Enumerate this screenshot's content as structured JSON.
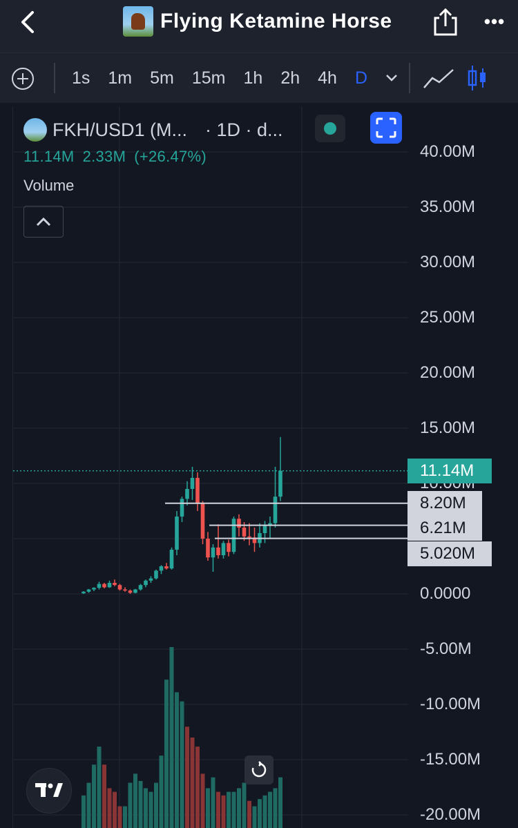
{
  "header": {
    "title": "Flying Ketamine Horse",
    "back_icon": "chevron-left-icon",
    "share_icon": "share-icon",
    "more_icon": "more-dots-icon",
    "more_label": "•••"
  },
  "toolbar": {
    "add_icon": "plus-circle-icon",
    "intervals": [
      "1s",
      "1m",
      "5m",
      "15m",
      "1h",
      "2h",
      "4h",
      "D"
    ],
    "active_interval": "D",
    "line_chart_icon": "line-chart-icon",
    "candle_chart_icon": "candlestick-icon"
  },
  "legend": {
    "symbol": "FKH/USD1 (M...",
    "interval": "· 1D · d...",
    "last_value": "11.14M",
    "change": "2.33M",
    "change_pct": "(+26.47%)",
    "volume_label": "Volume",
    "status_color": "#26a69a"
  },
  "price_axis": {
    "labels": [
      "40.00M",
      "35.00M",
      "30.00M",
      "25.00M",
      "20.00M",
      "15.00M",
      "0.0000",
      "-5.00M",
      "-10.00M",
      "-15.00M",
      "-20.00M"
    ],
    "partial_label": "10.00M"
  },
  "price_tags": {
    "current": "11.14M",
    "lines": [
      "8.20M",
      "6.21M",
      "5.020M"
    ]
  },
  "colors": {
    "background": "#131722",
    "up": "#26a69a",
    "down": "#ef5350",
    "accent": "#2962ff"
  },
  "chart_data": {
    "type": "candlestick",
    "symbol": "FKH/USD1",
    "interval": "1D",
    "ylim": [
      -20000000,
      40000000
    ],
    "last": 11140000,
    "horizontal_lines": [
      8200000,
      6210000,
      5020000
    ],
    "candles": [
      {
        "o": 0.05,
        "h": 0.25,
        "l": 0.0,
        "c": 0.2
      },
      {
        "o": 0.2,
        "h": 0.45,
        "l": 0.1,
        "c": 0.4
      },
      {
        "o": 0.4,
        "h": 0.6,
        "l": 0.25,
        "c": 0.55
      },
      {
        "o": 0.55,
        "h": 1.1,
        "l": 0.4,
        "c": 0.9
      },
      {
        "o": 0.9,
        "h": 1.0,
        "l": 0.5,
        "c": 0.6
      },
      {
        "o": 0.6,
        "h": 1.2,
        "l": 0.55,
        "c": 1.0
      },
      {
        "o": 1.0,
        "h": 1.3,
        "l": 0.7,
        "c": 0.8
      },
      {
        "o": 0.8,
        "h": 0.9,
        "l": 0.3,
        "c": 0.4
      },
      {
        "o": 0.4,
        "h": 0.6,
        "l": 0.2,
        "c": 0.3
      },
      {
        "o": 0.3,
        "h": 0.4,
        "l": 0.0,
        "c": 0.1
      },
      {
        "o": 0.1,
        "h": 0.45,
        "l": 0.05,
        "c": 0.4
      },
      {
        "o": 0.4,
        "h": 0.9,
        "l": 0.3,
        "c": 0.8
      },
      {
        "o": 0.8,
        "h": 1.3,
        "l": 0.6,
        "c": 1.2
      },
      {
        "o": 1.2,
        "h": 1.6,
        "l": 1.0,
        "c": 1.4
      },
      {
        "o": 1.4,
        "h": 2.2,
        "l": 1.3,
        "c": 2.1
      },
      {
        "o": 2.1,
        "h": 2.6,
        "l": 1.8,
        "c": 2.5
      },
      {
        "o": 2.5,
        "h": 2.8,
        "l": 2.2,
        "c": 2.3
      },
      {
        "o": 2.3,
        "h": 4.2,
        "l": 2.2,
        "c": 4.0
      },
      {
        "o": 4.0,
        "h": 7.5,
        "l": 3.5,
        "c": 7.0
      },
      {
        "o": 7.0,
        "h": 8.8,
        "l": 6.5,
        "c": 8.6
      },
      {
        "o": 8.6,
        "h": 10.2,
        "l": 8.0,
        "c": 9.5
      },
      {
        "o": 9.5,
        "h": 11.5,
        "l": 8.5,
        "c": 10.5
      },
      {
        "o": 10.5,
        "h": 11.0,
        "l": 7.5,
        "c": 8.2
      },
      {
        "o": 8.2,
        "h": 8.4,
        "l": 4.5,
        "c": 5.0
      },
      {
        "o": 5.0,
        "h": 5.6,
        "l": 3.0,
        "c": 3.3
      },
      {
        "o": 3.3,
        "h": 4.5,
        "l": 2.0,
        "c": 4.2
      },
      {
        "o": 4.2,
        "h": 6.3,
        "l": 3.2,
        "c": 3.5
      },
      {
        "o": 3.5,
        "h": 4.8,
        "l": 3.2,
        "c": 4.6
      },
      {
        "o": 4.6,
        "h": 4.9,
        "l": 3.4,
        "c": 3.8
      },
      {
        "o": 3.8,
        "h": 7.0,
        "l": 3.6,
        "c": 6.8
      },
      {
        "o": 6.8,
        "h": 7.2,
        "l": 5.2,
        "c": 6.0
      },
      {
        "o": 6.0,
        "h": 6.5,
        "l": 4.8,
        "c": 5.2
      },
      {
        "o": 5.2,
        "h": 6.4,
        "l": 4.4,
        "c": 5.1
      },
      {
        "o": 5.1,
        "h": 6.0,
        "l": 3.8,
        "c": 4.6
      },
      {
        "o": 4.6,
        "h": 6.4,
        "l": 4.2,
        "c": 5.5
      },
      {
        "o": 5.5,
        "h": 6.6,
        "l": 4.6,
        "c": 6.2
      },
      {
        "o": 6.2,
        "h": 7.0,
        "l": 5.0,
        "c": 6.4
      },
      {
        "o": 6.4,
        "h": 11.5,
        "l": 6.0,
        "c": 8.8
      },
      {
        "o": 8.8,
        "h": 14.2,
        "l": 8.4,
        "c": 11.14
      }
    ],
    "volumes": [
      {
        "v": 0.18,
        "up": true
      },
      {
        "v": 0.25,
        "up": true
      },
      {
        "v": 0.35,
        "up": true
      },
      {
        "v": 0.45,
        "up": true
      },
      {
        "v": 0.35,
        "up": false
      },
      {
        "v": 0.22,
        "up": false
      },
      {
        "v": 0.2,
        "up": false
      },
      {
        "v": 0.12,
        "up": false
      },
      {
        "v": 0.12,
        "up": true
      },
      {
        "v": 0.25,
        "up": true
      },
      {
        "v": 0.3,
        "up": true
      },
      {
        "v": 0.26,
        "up": true
      },
      {
        "v": 0.22,
        "up": true
      },
      {
        "v": 0.2,
        "up": true
      },
      {
        "v": 0.25,
        "up": true
      },
      {
        "v": 0.4,
        "up": true
      },
      {
        "v": 0.82,
        "up": true
      },
      {
        "v": 1.0,
        "up": true
      },
      {
        "v": 0.75,
        "up": true
      },
      {
        "v": 0.7,
        "up": true
      },
      {
        "v": 0.56,
        "up": false
      },
      {
        "v": 0.5,
        "up": false
      },
      {
        "v": 0.45,
        "up": false
      },
      {
        "v": 0.3,
        "up": false
      },
      {
        "v": 0.22,
        "up": true
      },
      {
        "v": 0.28,
        "up": true
      },
      {
        "v": 0.2,
        "up": false
      },
      {
        "v": 0.18,
        "up": false
      },
      {
        "v": 0.2,
        "up": true
      },
      {
        "v": 0.2,
        "up": true
      },
      {
        "v": 0.22,
        "up": true
      },
      {
        "v": 0.25,
        "up": true
      },
      {
        "v": 0.15,
        "up": false
      },
      {
        "v": 0.12,
        "up": true
      },
      {
        "v": 0.16,
        "up": true
      },
      {
        "v": 0.18,
        "up": true
      },
      {
        "v": 0.2,
        "up": true
      },
      {
        "v": 0.22,
        "up": true
      },
      {
        "v": 0.28,
        "up": true
      }
    ]
  }
}
